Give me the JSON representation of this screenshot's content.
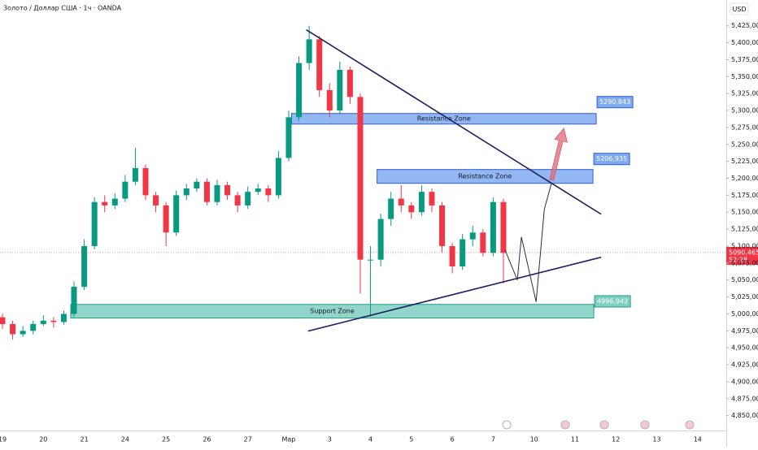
{
  "header": {
    "symbol": "Золото / Доллар США · 1ч · OANDA",
    "currency": "USD"
  },
  "chart_data": {
    "type": "candlestick",
    "categories": [
      "19",
      "20",
      "21",
      "24",
      "25",
      "26",
      "27",
      "Мар",
      "3",
      "4",
      "5",
      "6",
      "7",
      "10",
      "11",
      "12",
      "13",
      "14"
    ],
    "xlim": [
      -0.06,
      17.7
    ],
    "ylim": [
      4828,
      5463
    ],
    "grid": false,
    "yticks": [
      {
        "value": 5425,
        "label": "5,425,000"
      },
      {
        "value": 5400,
        "label": "5,400,000"
      },
      {
        "value": 5375,
        "label": "5,375,000"
      },
      {
        "value": 5350,
        "label": "5,350,000"
      },
      {
        "value": 5325,
        "label": "5,325,000"
      },
      {
        "value": 5300,
        "label": "5,300,000"
      },
      {
        "value": 5275,
        "label": "5,275,000"
      },
      {
        "value": 5250,
        "label": "5,250,000"
      },
      {
        "value": 5225,
        "label": "5,225,000"
      },
      {
        "value": 5200,
        "label": "5,200,000"
      },
      {
        "value": 5175,
        "label": "5,175,000"
      },
      {
        "value": 5150,
        "label": "5,150,000"
      },
      {
        "value": 5125,
        "label": "5,125,000"
      },
      {
        "value": 5100,
        "label": "5,100,000"
      },
      {
        "value": 5075,
        "label": "5,075,000"
      },
      {
        "value": 5050,
        "label": "5,050,000"
      },
      {
        "value": 5025,
        "label": "5,025,000"
      },
      {
        "value": 5000,
        "label": "5,000,000"
      },
      {
        "value": 4975,
        "label": "4,975,000"
      },
      {
        "value": 4950,
        "label": "4,950,000"
      },
      {
        "value": 4925,
        "label": "4,925,000"
      },
      {
        "value": 4900,
        "label": "4,900,000"
      },
      {
        "value": 4875,
        "label": "4,875,000"
      },
      {
        "value": 4850,
        "label": "4,850,000"
      }
    ],
    "candles": {
      "up_color": "#089981",
      "down_color": "#f23645",
      "x": [
        0,
        0.25,
        0.5,
        0.75,
        1,
        1.25,
        1.5,
        1.75,
        2,
        2.25,
        2.5,
        2.75,
        3,
        3.25,
        3.5,
        3.75,
        4,
        4.25,
        4.5,
        4.75,
        5,
        5.25,
        5.5,
        5.75,
        6,
        6.25,
        6.5,
        6.75,
        7,
        7.25,
        7.5,
        7.75,
        8,
        8.25,
        8.5,
        8.75,
        9,
        9.25,
        9.5,
        9.75,
        10,
        10.25,
        10.5,
        10.75,
        11,
        11.25,
        11.5,
        11.75,
        12,
        12.25
      ],
      "open": [
        4995,
        4985,
        4970,
        4975,
        4985,
        4990,
        4988,
        5000,
        5040,
        5100,
        5165,
        5160,
        5170,
        5195,
        5215,
        5175,
        5160,
        5120,
        5175,
        5185,
        5195,
        5165,
        5190,
        5175,
        5160,
        5180,
        5185,
        5175,
        5230,
        5290,
        5370,
        5405,
        5330,
        5300,
        5360,
        5320,
        5080,
        5080,
        5140,
        5170,
        5160,
        5150,
        5180,
        5160,
        5100,
        5070,
        5110,
        5120,
        5090,
        5165
      ],
      "high": [
        5000,
        4990,
        4982,
        4990,
        4998,
        4995,
        5005,
        5048,
        5110,
        5172,
        5175,
        5178,
        5205,
        5245,
        5220,
        5180,
        5165,
        5182,
        5192,
        5200,
        5200,
        5198,
        5195,
        5180,
        5188,
        5192,
        5190,
        5240,
        5300,
        5380,
        5425,
        5410,
        5340,
        5372,
        5365,
        5325,
        5100,
        5148,
        5180,
        5190,
        5165,
        5190,
        5185,
        5165,
        5105,
        5118,
        5130,
        5125,
        5172,
        5170
      ],
      "low": [
        4978,
        4962,
        4966,
        4970,
        4982,
        4980,
        4984,
        4995,
        5035,
        5095,
        5150,
        5155,
        5165,
        5190,
        5168,
        5150,
        5100,
        5115,
        5168,
        5180,
        5160,
        5160,
        5168,
        5150,
        5155,
        5175,
        5165,
        5170,
        5225,
        5285,
        5360,
        5320,
        5290,
        5295,
        5310,
        5030,
        4996,
        5070,
        5130,
        5150,
        5140,
        5145,
        5150,
        5090,
        5060,
        5065,
        5100,
        5085,
        5085,
        5045
      ],
      "close": [
        4985,
        4970,
        4975,
        4985,
        4990,
        4988,
        5000,
        5040,
        5100,
        5165,
        5160,
        5170,
        5195,
        5215,
        5175,
        5160,
        5120,
        5175,
        5185,
        5195,
        5165,
        5190,
        5175,
        5160,
        5180,
        5185,
        5175,
        5230,
        5290,
        5370,
        5405,
        5330,
        5300,
        5360,
        5320,
        5080,
        5080,
        5140,
        5170,
        5160,
        5150,
        5180,
        5160,
        5100,
        5070,
        5110,
        5120,
        5090,
        5165,
        5090
      ]
    },
    "last_price": {
      "value": 5090.465,
      "label": "5090,465",
      "countdown": "52:28",
      "color": "#f23645"
    },
    "zones": [
      {
        "label": "Resistance Zone",
        "value": 5290.843,
        "value_label": "5290,843",
        "top": 5295.6,
        "bottom": 5280,
        "x": [
          7.07,
          14.52
        ],
        "color": "#7faaf0",
        "border": "#2f5fd0"
      },
      {
        "label": "Resistance Zone",
        "value": 5206.935,
        "value_label": "5206,935",
        "top": 5213,
        "bottom": 5192.6,
        "x": [
          9.16,
          14.44
        ],
        "color": "#7faaf0",
        "border": "#2f5fd0"
      },
      {
        "label": "Support Zone",
        "value": 4996.942,
        "value_label": "4996,942",
        "top": 5014,
        "bottom": 4993.8,
        "x": [
          1.67,
          14.46
        ],
        "color": "#7fcfbf",
        "border": "#1f9e88"
      }
    ],
    "trendlines": [
      {
        "x": [
          7.43,
          14.64
        ],
        "y": [
          5419,
          5147
        ],
        "color": "#1c2160"
      },
      {
        "x": [
          7.47,
          14.64
        ],
        "y": [
          4974.6,
          5083.6
        ],
        "color": "#1c2160"
      }
    ],
    "projection": {
      "x": [
        12.29,
        12.59,
        12.69,
        13.05,
        13.25,
        13.43
      ],
      "y": [
        5094.4,
        5050,
        5113.5,
        5017.7,
        5154.3,
        5193.8
      ],
      "color": "#2a2e39"
    },
    "target_arrow": {
      "x": [
        13.43,
        13.73
      ],
      "y": [
        5197.4,
        5274
      ],
      "color": "#e0707e"
    }
  }
}
